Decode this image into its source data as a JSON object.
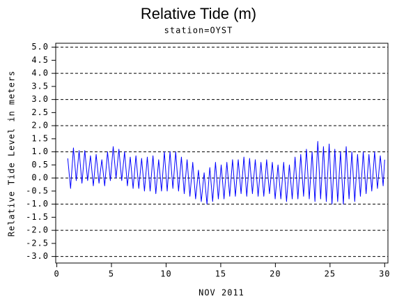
{
  "chart_data": {
    "type": "line",
    "title": "Relative Tide (m)",
    "subtitle": "station=OYST",
    "x_label": "NOV 2011",
    "y_label": "Relative Tide Level in meters",
    "xlim": [
      -0.1,
      30.3
    ],
    "ylim": [
      -3.25,
      5.15
    ],
    "xticks": [
      0,
      5,
      10,
      15,
      20,
      25,
      30
    ],
    "yticks": [
      {
        "value": 5,
        "label": "5.0"
      },
      {
        "value": 4.5,
        "label": "4.5"
      },
      {
        "value": 4,
        "label": "4.0"
      },
      {
        "value": 3.5,
        "label": "3.5"
      },
      {
        "value": 3,
        "label": "3.0"
      },
      {
        "value": 2.5,
        "label": "2.5"
      },
      {
        "value": 2,
        "label": "2.0"
      },
      {
        "value": 1.5,
        "label": "1.5"
      },
      {
        "value": 1,
        "label": "1.0"
      },
      {
        "value": 0.5,
        "label": "0.5"
      },
      {
        "value": 0,
        "label": "0.0"
      },
      {
        "value": -0.5,
        "label": "-0.5"
      },
      {
        "value": -1,
        "label": "-1.0"
      },
      {
        "value": -1.5,
        "label": "-1.5"
      },
      {
        "value": -2,
        "label": "-2.0"
      },
      {
        "value": -2.5,
        "label": "-2.5"
      },
      {
        "value": -3,
        "label": "-3.0"
      }
    ],
    "grid": true,
    "color": "#0000ff",
    "x": [
      1.0,
      1.26,
      1.52,
      1.78,
      2.04,
      2.3,
      2.56,
      2.82,
      3.08,
      3.34,
      3.6,
      3.86,
      4.12,
      4.38,
      4.64,
      4.9,
      5.16,
      5.42,
      5.68,
      5.94,
      6.2,
      6.46,
      6.72,
      6.98,
      7.24,
      7.5,
      7.76,
      8.02,
      8.28,
      8.54,
      8.8,
      9.06,
      9.32,
      9.58,
      9.84,
      10.1,
      10.36,
      10.62,
      10.88,
      11.14,
      11.4,
      11.66,
      11.92,
      12.18,
      12.44,
      12.7,
      12.96,
      13.22,
      13.48,
      13.74,
      14.0,
      14.26,
      14.52,
      14.78,
      15.04,
      15.3,
      15.56,
      15.82,
      16.08,
      16.34,
      16.6,
      16.86,
      17.12,
      17.38,
      17.64,
      17.9,
      18.16,
      18.42,
      18.68,
      18.94,
      19.2,
      19.46,
      19.72,
      19.98,
      20.24,
      20.5,
      20.76,
      21.02,
      21.28,
      21.54,
      21.8,
      22.06,
      22.32,
      22.58,
      22.84,
      23.1,
      23.36,
      23.62,
      23.88,
      24.14,
      24.4,
      24.66,
      24.92,
      25.18,
      25.44,
      25.7,
      25.96,
      26.22,
      26.48,
      26.74,
      27.0,
      27.26,
      27.52,
      27.78,
      28.04,
      28.3,
      28.56,
      28.82,
      29.08,
      29.34,
      29.6,
      29.86,
      30.0
    ],
    "values": [
      0.75,
      -0.4,
      1.15,
      -0.1,
      1.05,
      -0.2,
      1.05,
      -0.1,
      0.85,
      -0.3,
      0.9,
      -0.2,
      0.7,
      -0.3,
      1.0,
      -0.1,
      1.2,
      0.0,
      1.1,
      -0.1,
      1.0,
      -0.3,
      0.8,
      -0.4,
      0.85,
      -0.4,
      0.75,
      -0.5,
      0.8,
      -0.5,
      0.85,
      -0.6,
      0.7,
      -0.5,
      1.0,
      -0.5,
      1.0,
      -0.4,
      1.0,
      -0.5,
      0.8,
      -0.6,
      0.7,
      -0.7,
      0.6,
      -0.8,
      0.3,
      -0.9,
      0.2,
      -1.0,
      0.4,
      -0.9,
      0.6,
      -0.8,
      0.5,
      -0.8,
      0.6,
      -0.7,
      0.7,
      -0.7,
      0.7,
      -0.6,
      0.8,
      -0.7,
      0.75,
      -0.6,
      0.7,
      -0.7,
      0.6,
      -0.7,
      0.7,
      -0.6,
      0.6,
      -0.8,
      0.5,
      -0.8,
      0.6,
      -0.9,
      0.5,
      -0.8,
      0.8,
      -0.8,
      0.9,
      -0.7,
      1.1,
      -0.8,
      1.0,
      -0.9,
      1.4,
      -0.8,
      1.2,
      -0.9,
      1.3,
      -1.0,
      1.1,
      -0.9,
      1.0,
      -1.0,
      1.2,
      -0.8,
      1.0,
      -0.9,
      0.9,
      -0.7,
      1.0,
      -0.6,
      0.9,
      -0.5,
      1.0,
      -0.4,
      0.85,
      -0.3,
      0.7
    ]
  }
}
